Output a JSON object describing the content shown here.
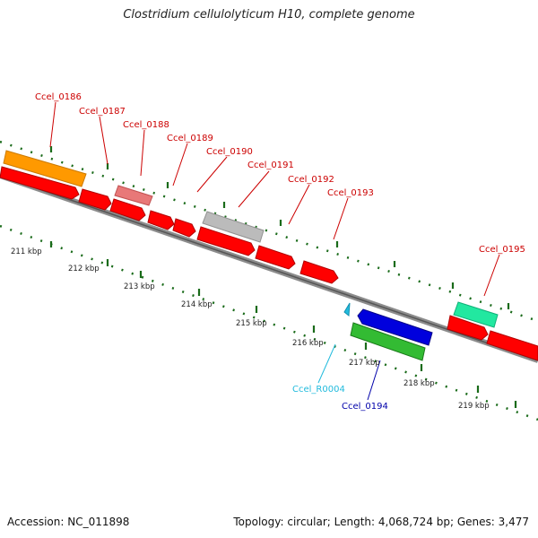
{
  "title": "Clostridium cellulolyticum H10, complete genome",
  "footer": {
    "accession": "Accession: NC_011898",
    "topology": "Topology: circular; Length: 4,068,724 bp; Genes: 3,477"
  },
  "colors": {
    "backbone_outer": "#8c8c8c",
    "backbone_inner": "#555555",
    "tick": "#1a6b1a",
    "cds": "#ff0000",
    "orange": "#ff9900",
    "pink": "#e87878",
    "gray_feature": "#bbbbbb",
    "blue": "#0000dd",
    "green": "#33bb33",
    "teal": "#22e8a0",
    "cyan": "#22bbdd",
    "label_red": "#cc0000",
    "label_blue": "#0000aa",
    "label_cyan": "#22bbdd",
    "scale_text": "#222222"
  },
  "scale_labels": [
    "211 kbp",
    "212 kbp",
    "213 kbp",
    "214 kbp",
    "215 kbp",
    "216 kbp",
    "217 kbp",
    "218 kbp",
    "219 kbp"
  ],
  "gene_labels": [
    {
      "text": "Ccel_0186",
      "color": "label_red"
    },
    {
      "text": "Ccel_0187",
      "color": "label_red"
    },
    {
      "text": "Ccel_0188",
      "color": "label_red"
    },
    {
      "text": "Ccel_0189",
      "color": "label_red"
    },
    {
      "text": "Ccel_0190",
      "color": "label_red"
    },
    {
      "text": "Ccel_0191",
      "color": "label_red"
    },
    {
      "text": "Ccel_0192",
      "color": "label_red"
    },
    {
      "text": "Ccel_0193",
      "color": "label_red"
    },
    {
      "text": "Ccel_0195",
      "color": "label_red"
    },
    {
      "text": "Ccel_R0004",
      "color": "label_cyan"
    },
    {
      "text": "Ccel_0194",
      "color": "label_blue"
    }
  ]
}
